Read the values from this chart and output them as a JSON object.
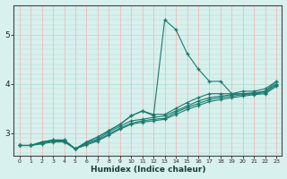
{
  "xlabel": "Humidex (Indice chaleur)",
  "bg_color": "#d8f0ee",
  "line_color": "#1a7a6e",
  "grid_color_h": "#aaddcc",
  "grid_color_v": "#ffaaaa",
  "xlim": [
    -0.5,
    23.5
  ],
  "ylim": [
    2.55,
    5.6
  ],
  "yticks": [
    3,
    4,
    5
  ],
  "xticks": [
    0,
    1,
    2,
    3,
    4,
    5,
    6,
    7,
    8,
    9,
    10,
    11,
    12,
    13,
    14,
    15,
    16,
    17,
    18,
    19,
    20,
    21,
    22,
    23
  ],
  "series": [
    [
      2.75,
      2.75,
      2.82,
      2.86,
      2.86,
      2.68,
      2.82,
      2.92,
      3.05,
      3.18,
      3.35,
      3.45,
      3.35,
      5.3,
      5.1,
      4.62,
      4.3,
      4.05,
      4.05,
      3.8,
      3.8,
      3.8,
      3.85,
      4.05
    ],
    [
      2.75,
      2.75,
      2.82,
      2.86,
      2.86,
      2.68,
      2.82,
      2.92,
      3.05,
      3.18,
      3.35,
      3.45,
      3.38,
      3.38,
      3.5,
      3.62,
      3.72,
      3.8,
      3.8,
      3.8,
      3.85,
      3.85,
      3.9,
      4.05
    ],
    [
      2.75,
      2.75,
      2.8,
      2.85,
      2.85,
      2.68,
      2.8,
      2.88,
      3.02,
      3.14,
      3.25,
      3.28,
      3.32,
      3.35,
      3.45,
      3.55,
      3.65,
      3.72,
      3.75,
      3.78,
      3.8,
      3.82,
      3.85,
      4.0
    ],
    [
      2.75,
      2.75,
      2.8,
      2.84,
      2.84,
      2.68,
      2.78,
      2.86,
      2.98,
      3.1,
      3.2,
      3.25,
      3.28,
      3.3,
      3.42,
      3.52,
      3.6,
      3.68,
      3.72,
      3.75,
      3.78,
      3.8,
      3.82,
      3.98
    ],
    [
      2.75,
      2.75,
      2.78,
      2.82,
      2.82,
      2.68,
      2.76,
      2.84,
      2.96,
      3.08,
      3.18,
      3.22,
      3.25,
      3.28,
      3.38,
      3.48,
      3.56,
      3.64,
      3.68,
      3.72,
      3.75,
      3.78,
      3.8,
      3.95
    ]
  ]
}
